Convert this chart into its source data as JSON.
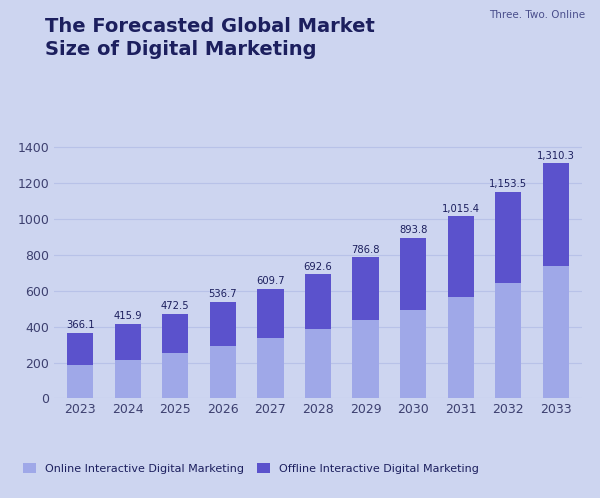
{
  "title_line1": "The Forecasted Global Market",
  "title_line2": "Size of Digital Marketing",
  "watermark": "Three. Two. Online",
  "years": [
    "2023",
    "2024",
    "2025",
    "2026",
    "2027",
    "2028",
    "2029",
    "2030",
    "2031",
    "2032",
    "2033"
  ],
  "totals": [
    366.1,
    415.9,
    472.5,
    536.7,
    609.7,
    692.6,
    786.8,
    893.8,
    1015.4,
    1153.5,
    1310.3
  ],
  "online_values": [
    185,
    215,
    255,
    290,
    335,
    385,
    435,
    495,
    565,
    645,
    740
  ],
  "background_color": "#cdd5f0",
  "bar_online_color": "#9fa8e8",
  "bar_offline_color": "#5b52cc",
  "title_color": "#1c1f5e",
  "axis_color": "#1c1f5e",
  "tick_color": "#3d4070",
  "legend_online": "Online Interactive Digital Marketing",
  "legend_offline": "Offline Interactive Digital Marketing",
  "ylim": [
    0,
    1500
  ],
  "yticks": [
    0,
    200,
    400,
    600,
    800,
    1000,
    1200,
    1400
  ],
  "watermark_color": "#4a4f8c",
  "label_color": "#1c1f5e",
  "grid_color": "#b8c2e8"
}
